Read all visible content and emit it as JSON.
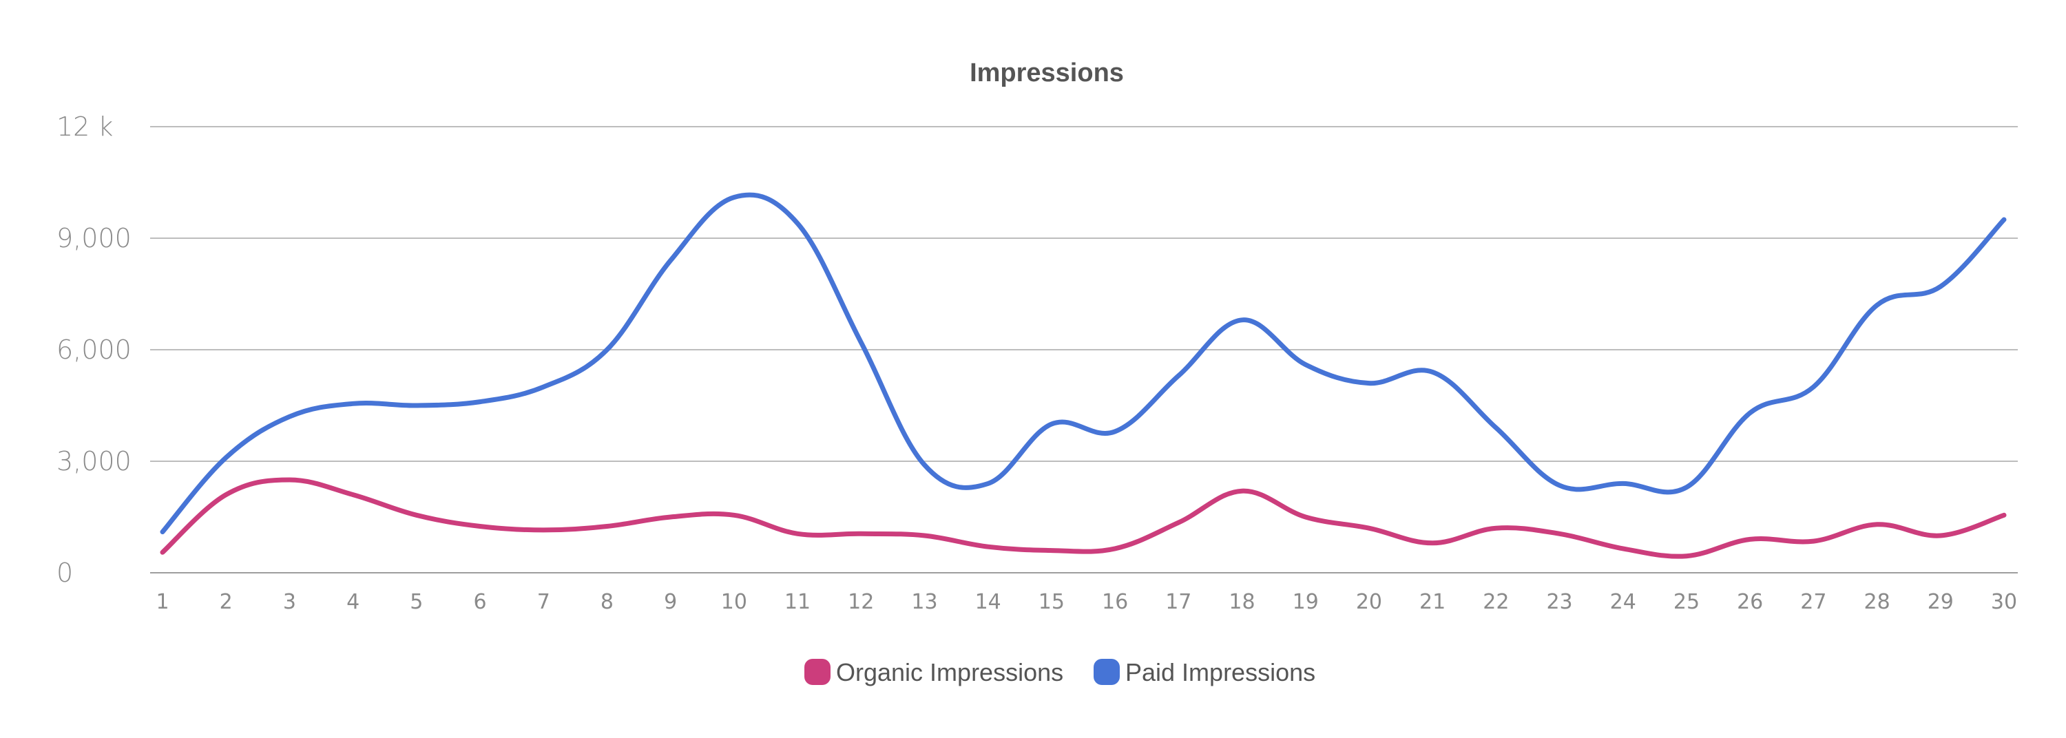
{
  "chart_data": {
    "type": "line",
    "title": "Impressions",
    "xlabel": "",
    "ylabel": "",
    "categories": [
      "1",
      "2",
      "3",
      "4",
      "5",
      "6",
      "7",
      "8",
      "9",
      "10",
      "11",
      "12",
      "13",
      "14",
      "15",
      "16",
      "17",
      "18",
      "19",
      "20",
      "21",
      "22",
      "23",
      "24",
      "25",
      "26",
      "27",
      "28",
      "29",
      "30"
    ],
    "ylim": [
      0,
      12000
    ],
    "yticks": [
      {
        "value": 0,
        "label": "0"
      },
      {
        "value": 3000,
        "label": "3,000"
      },
      {
        "value": 6000,
        "label": "6,000"
      },
      {
        "value": 9000,
        "label": "9,000"
      },
      {
        "value": 12000,
        "label": "12 k"
      }
    ],
    "grid": true,
    "legend_position": "bottom-center",
    "series": [
      {
        "name": "Organic Impressions",
        "color": "#cc3d7c",
        "values": [
          550,
          2100,
          2500,
          2100,
          1550,
          1250,
          1150,
          1250,
          1500,
          1550,
          1050,
          1050,
          1000,
          700,
          600,
          650,
          1350,
          2200,
          1500,
          1200,
          800,
          1200,
          1050,
          650,
          450,
          900,
          850,
          1300,
          1000,
          1550
        ]
      },
      {
        "name": "Paid Impressions",
        "color": "#4674d6",
        "values": [
          1100,
          3100,
          4200,
          4550,
          4500,
          4600,
          5000,
          6000,
          8400,
          10100,
          9400,
          6200,
          2900,
          2400,
          4000,
          3800,
          5300,
          6800,
          5600,
          5100,
          5400,
          3900,
          2350,
          2400,
          2300,
          4300,
          5000,
          7200,
          7700,
          9500
        ]
      }
    ]
  }
}
